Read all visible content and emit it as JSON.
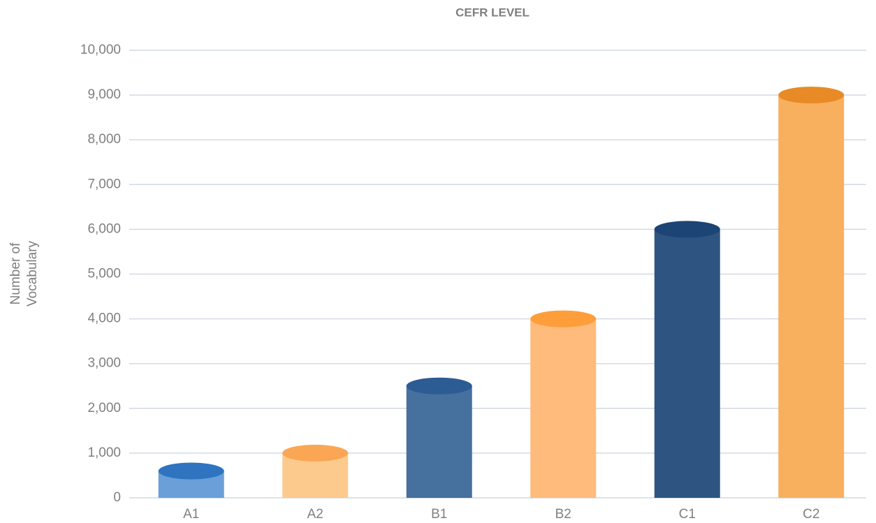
{
  "chart_data": {
    "type": "bar",
    "title": "CEFR LEVEL",
    "y_label": [
      "Number of",
      "Vocabulary"
    ],
    "categories": [
      "A1",
      "A2",
      "B1",
      "B2",
      "C1",
      "C2"
    ],
    "values": [
      600,
      1000,
      2500,
      4000,
      6000,
      9000
    ],
    "colors": [
      "#6a9fd8",
      "#fdca8d",
      "#46709e",
      "#febb7b",
      "#2e5582",
      "#f8af5e"
    ],
    "top_colors": [
      "#2f74c0",
      "#fba655",
      "#2d5b93",
      "#fd9e3b",
      "#1c4474",
      "#e88a26"
    ],
    "ylim": [
      0,
      10000
    ],
    "yticks": [
      0,
      {
        "value": 1000,
        "label": "1,000"
      },
      {
        "value": 2000,
        "label": "2,000"
      },
      {
        "value": 3000,
        "label": "3,000"
      },
      {
        "value": 4000,
        "label": "4,000"
      },
      {
        "value": 5000,
        "label": "5,000"
      },
      {
        "value": 6000,
        "label": "6,000"
      },
      {
        "value": 7000,
        "label": "7,000"
      },
      {
        "value": 8000,
        "label": "8,000"
      },
      {
        "value": 9000,
        "label": "9,000"
      },
      {
        "value": 10000,
        "label": "10,000"
      }
    ],
    "grid": true
  }
}
